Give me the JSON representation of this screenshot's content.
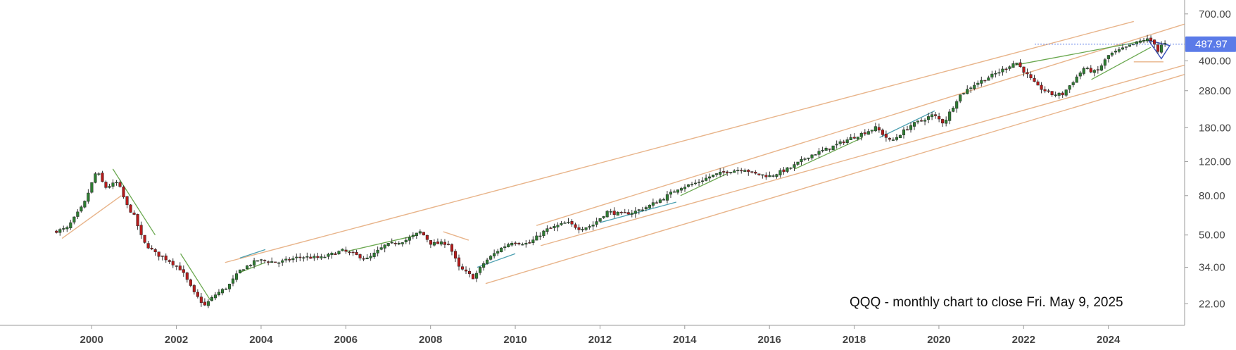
{
  "chart_data": {
    "type": "candlestick",
    "symbol": "QQQ",
    "interval": "monthly",
    "annotation": "QQQ - monthly chart to close Fri. May 9, 2025",
    "y_scale": "log",
    "ylim": [
      17,
      760
    ],
    "xlim": [
      1999.0,
      2025.75
    ],
    "y_tick_labels": [
      "22.00",
      "34.00",
      "50.00",
      "80.00",
      "120.00",
      "180.00",
      "280.00",
      "400.00",
      "700.00"
    ],
    "x_tick_labels": [
      "2000",
      "2002",
      "2004",
      "2006",
      "2008",
      "2010",
      "2012",
      "2014",
      "2016",
      "2018",
      "2020",
      "2022",
      "2024"
    ],
    "last_price": 487.97,
    "last_price_label": "487.97",
    "grid": false,
    "colors": {
      "up": "#2e7d32",
      "down": "#b71c1c",
      "channel": "#e8b48a",
      "trend": "#6aa84f",
      "price_tag": "#5b7be8"
    },
    "price_path": [
      [
        1999.17,
        52
      ],
      [
        1999.5,
        54
      ],
      [
        1999.9,
        72
      ],
      [
        2000.2,
        108
      ],
      [
        2000.4,
        88
      ],
      [
        2000.7,
        94
      ],
      [
        2000.9,
        72
      ],
      [
        2001.1,
        62
      ],
      [
        2001.3,
        46
      ],
      [
        2001.6,
        40
      ],
      [
        2001.9,
        37
      ],
      [
        2002.2,
        33
      ],
      [
        2002.5,
        25
      ],
      [
        2002.75,
        21.5
      ],
      [
        2003.0,
        24.5
      ],
      [
        2003.3,
        27
      ],
      [
        2003.6,
        33
      ],
      [
        2004.0,
        37
      ],
      [
        2004.5,
        36
      ],
      [
        2005.0,
        38.5
      ],
      [
        2005.5,
        38
      ],
      [
        2006.0,
        41.5
      ],
      [
        2006.6,
        37.5
      ],
      [
        2007.0,
        44
      ],
      [
        2007.5,
        47
      ],
      [
        2007.85,
        52
      ],
      [
        2008.1,
        45
      ],
      [
        2008.5,
        45.5
      ],
      [
        2008.75,
        34
      ],
      [
        2009.1,
        30
      ],
      [
        2009.35,
        36
      ],
      [
        2009.7,
        42
      ],
      [
        2010.0,
        46
      ],
      [
        2010.4,
        45
      ],
      [
        2010.8,
        53
      ],
      [
        2011.3,
        58
      ],
      [
        2011.6,
        54
      ],
      [
        2011.9,
        56
      ],
      [
        2012.25,
        66
      ],
      [
        2012.6,
        64
      ],
      [
        2012.9,
        66
      ],
      [
        2013.2,
        70
      ],
      [
        2013.6,
        78
      ],
      [
        2013.95,
        88
      ],
      [
        2014.3,
        92
      ],
      [
        2014.7,
        101
      ],
      [
        2015.1,
        107
      ],
      [
        2015.5,
        110
      ],
      [
        2015.7,
        104
      ],
      [
        2016.1,
        101
      ],
      [
        2016.6,
        112
      ],
      [
        2017.0,
        128
      ],
      [
        2017.5,
        141
      ],
      [
        2017.95,
        157
      ],
      [
        2018.6,
        180
      ],
      [
        2018.95,
        152
      ],
      [
        2019.4,
        184
      ],
      [
        2019.95,
        210
      ],
      [
        2020.2,
        190
      ],
      [
        2020.55,
        262
      ],
      [
        2020.9,
        300
      ],
      [
        2021.5,
        350
      ],
      [
        2021.9,
        395
      ],
      [
        2022.4,
        295
      ],
      [
        2022.75,
        268
      ],
      [
        2023.0,
        268
      ],
      [
        2023.5,
        365
      ],
      [
        2023.8,
        348
      ],
      [
        2024.1,
        430
      ],
      [
        2024.5,
        468
      ],
      [
        2024.95,
        518
      ],
      [
        2025.15,
        505
      ],
      [
        2025.27,
        440
      ],
      [
        2025.35,
        488
      ]
    ]
  }
}
